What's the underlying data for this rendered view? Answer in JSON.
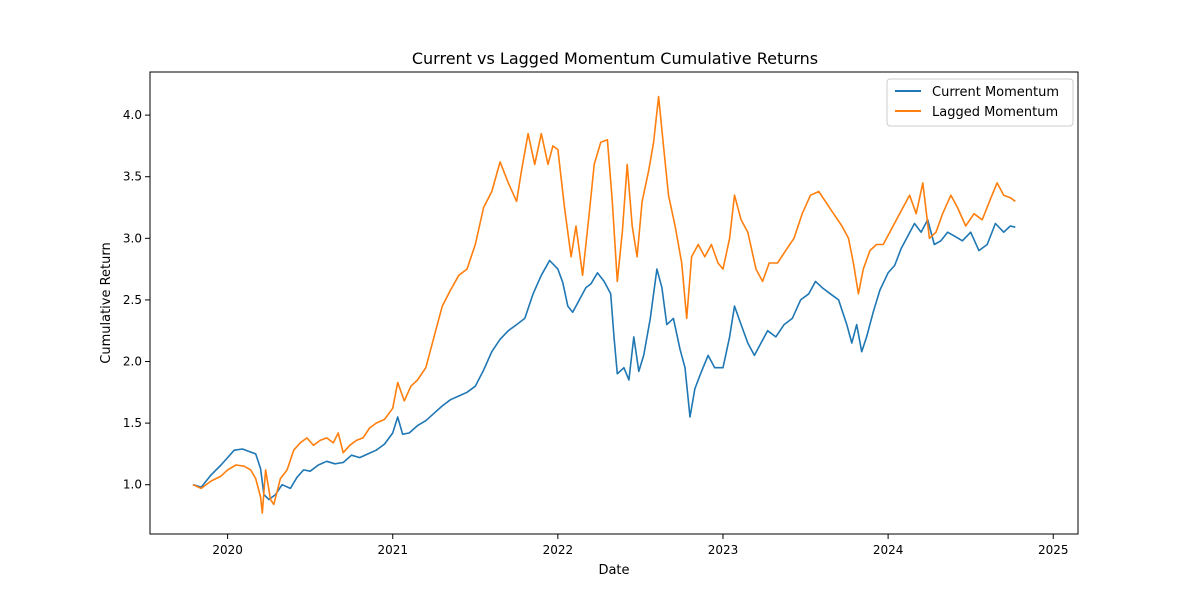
{
  "chart_data": {
    "type": "line",
    "title": "Current vs Lagged Momentum Cumulative Returns",
    "xlabel": "Date",
    "ylabel": "Cumulative Return",
    "xlim": [
      2019.53,
      2025.15
    ],
    "ylim": [
      0.6,
      4.35
    ],
    "x_ticks": [
      2020,
      2021,
      2022,
      2023,
      2024,
      2025
    ],
    "x_tick_labels": [
      "2020",
      "2021",
      "2022",
      "2023",
      "2024",
      "2025"
    ],
    "y_ticks": [
      1.0,
      1.5,
      2.0,
      2.5,
      3.0,
      3.5,
      4.0
    ],
    "y_tick_labels": [
      "1.0",
      "1.5",
      "2.0",
      "2.5",
      "3.0",
      "3.5",
      "4.0"
    ],
    "grid": false,
    "legend_position": "top-right",
    "series": [
      {
        "name": "Current Momentum",
        "color": "#1f77b4",
        "points": [
          [
            2019.79,
            1.0
          ],
          [
            2019.84,
            0.98
          ],
          [
            2019.9,
            1.08
          ],
          [
            2019.96,
            1.16
          ],
          [
            2020.0,
            1.22
          ],
          [
            2020.04,
            1.28
          ],
          [
            2020.09,
            1.29
          ],
          [
            2020.13,
            1.27
          ],
          [
            2020.17,
            1.25
          ],
          [
            2020.2,
            1.13
          ],
          [
            2020.22,
            0.92
          ],
          [
            2020.25,
            0.88
          ],
          [
            2020.29,
            0.92
          ],
          [
            2020.33,
            1.0
          ],
          [
            2020.38,
            0.97
          ],
          [
            2020.42,
            1.06
          ],
          [
            2020.46,
            1.12
          ],
          [
            2020.5,
            1.11
          ],
          [
            2020.55,
            1.16
          ],
          [
            2020.6,
            1.19
          ],
          [
            2020.65,
            1.17
          ],
          [
            2020.7,
            1.18
          ],
          [
            2020.75,
            1.24
          ],
          [
            2020.8,
            1.22
          ],
          [
            2020.85,
            1.25
          ],
          [
            2020.9,
            1.28
          ],
          [
            2020.95,
            1.33
          ],
          [
            2021.0,
            1.42
          ],
          [
            2021.03,
            1.55
          ],
          [
            2021.06,
            1.41
          ],
          [
            2021.1,
            1.42
          ],
          [
            2021.15,
            1.48
          ],
          [
            2021.2,
            1.52
          ],
          [
            2021.25,
            1.58
          ],
          [
            2021.3,
            1.64
          ],
          [
            2021.35,
            1.69
          ],
          [
            2021.4,
            1.72
          ],
          [
            2021.45,
            1.75
          ],
          [
            2021.5,
            1.8
          ],
          [
            2021.55,
            1.93
          ],
          [
            2021.6,
            2.08
          ],
          [
            2021.65,
            2.18
          ],
          [
            2021.7,
            2.25
          ],
          [
            2021.75,
            2.3
          ],
          [
            2021.8,
            2.35
          ],
          [
            2021.85,
            2.55
          ],
          [
            2021.9,
            2.7
          ],
          [
            2021.95,
            2.82
          ],
          [
            2022.0,
            2.75
          ],
          [
            2022.03,
            2.64
          ],
          [
            2022.06,
            2.45
          ],
          [
            2022.09,
            2.4
          ],
          [
            2022.13,
            2.5
          ],
          [
            2022.17,
            2.6
          ],
          [
            2022.2,
            2.63
          ],
          [
            2022.24,
            2.72
          ],
          [
            2022.28,
            2.65
          ],
          [
            2022.32,
            2.55
          ],
          [
            2022.34,
            2.2
          ],
          [
            2022.36,
            1.9
          ],
          [
            2022.4,
            1.95
          ],
          [
            2022.43,
            1.85
          ],
          [
            2022.46,
            2.2
          ],
          [
            2022.49,
            1.92
          ],
          [
            2022.52,
            2.05
          ],
          [
            2022.56,
            2.35
          ],
          [
            2022.6,
            2.75
          ],
          [
            2022.63,
            2.6
          ],
          [
            2022.66,
            2.3
          ],
          [
            2022.7,
            2.35
          ],
          [
            2022.74,
            2.1
          ],
          [
            2022.77,
            1.95
          ],
          [
            2022.8,
            1.55
          ],
          [
            2022.83,
            1.78
          ],
          [
            2022.87,
            1.92
          ],
          [
            2022.91,
            2.05
          ],
          [
            2022.95,
            1.95
          ],
          [
            2023.0,
            1.95
          ],
          [
            2023.04,
            2.2
          ],
          [
            2023.07,
            2.45
          ],
          [
            2023.11,
            2.3
          ],
          [
            2023.15,
            2.15
          ],
          [
            2023.19,
            2.05
          ],
          [
            2023.23,
            2.15
          ],
          [
            2023.27,
            2.25
          ],
          [
            2023.32,
            2.2
          ],
          [
            2023.37,
            2.3
          ],
          [
            2023.42,
            2.35
          ],
          [
            2023.47,
            2.5
          ],
          [
            2023.52,
            2.55
          ],
          [
            2023.56,
            2.65
          ],
          [
            2023.6,
            2.6
          ],
          [
            2023.65,
            2.55
          ],
          [
            2023.7,
            2.5
          ],
          [
            2023.75,
            2.3
          ],
          [
            2023.78,
            2.15
          ],
          [
            2023.81,
            2.3
          ],
          [
            2023.84,
            2.08
          ],
          [
            2023.87,
            2.2
          ],
          [
            2023.91,
            2.4
          ],
          [
            2023.95,
            2.58
          ],
          [
            2024.0,
            2.72
          ],
          [
            2024.04,
            2.78
          ],
          [
            2024.08,
            2.92
          ],
          [
            2024.12,
            3.02
          ],
          [
            2024.16,
            3.12
          ],
          [
            2024.2,
            3.05
          ],
          [
            2024.24,
            3.15
          ],
          [
            2024.28,
            2.95
          ],
          [
            2024.32,
            2.98
          ],
          [
            2024.36,
            3.05
          ],
          [
            2024.4,
            3.02
          ],
          [
            2024.45,
            2.98
          ],
          [
            2024.5,
            3.05
          ],
          [
            2024.55,
            2.9
          ],
          [
            2024.6,
            2.95
          ],
          [
            2024.65,
            3.12
          ],
          [
            2024.7,
            3.05
          ],
          [
            2024.74,
            3.1
          ],
          [
            2024.77,
            3.09
          ]
        ]
      },
      {
        "name": "Lagged Momentum",
        "color": "#ff7f0e",
        "points": [
          [
            2019.79,
            1.0
          ],
          [
            2019.84,
            0.97
          ],
          [
            2019.9,
            1.03
          ],
          [
            2019.96,
            1.07
          ],
          [
            2020.0,
            1.12
          ],
          [
            2020.05,
            1.16
          ],
          [
            2020.1,
            1.15
          ],
          [
            2020.14,
            1.12
          ],
          [
            2020.17,
            1.05
          ],
          [
            2020.2,
            0.9
          ],
          [
            2020.21,
            0.77
          ],
          [
            2020.23,
            1.12
          ],
          [
            2020.26,
            0.88
          ],
          [
            2020.28,
            0.84
          ],
          [
            2020.32,
            1.05
          ],
          [
            2020.36,
            1.12
          ],
          [
            2020.4,
            1.28
          ],
          [
            2020.44,
            1.34
          ],
          [
            2020.48,
            1.38
          ],
          [
            2020.52,
            1.32
          ],
          [
            2020.56,
            1.36
          ],
          [
            2020.6,
            1.38
          ],
          [
            2020.64,
            1.34
          ],
          [
            2020.67,
            1.42
          ],
          [
            2020.7,
            1.26
          ],
          [
            2020.74,
            1.32
          ],
          [
            2020.78,
            1.36
          ],
          [
            2020.82,
            1.38
          ],
          [
            2020.86,
            1.46
          ],
          [
            2020.9,
            1.5
          ],
          [
            2020.95,
            1.53
          ],
          [
            2021.0,
            1.62
          ],
          [
            2021.03,
            1.83
          ],
          [
            2021.07,
            1.68
          ],
          [
            2021.11,
            1.8
          ],
          [
            2021.15,
            1.85
          ],
          [
            2021.2,
            1.95
          ],
          [
            2021.25,
            2.2
          ],
          [
            2021.3,
            2.45
          ],
          [
            2021.35,
            2.58
          ],
          [
            2021.4,
            2.7
          ],
          [
            2021.45,
            2.75
          ],
          [
            2021.5,
            2.95
          ],
          [
            2021.55,
            3.25
          ],
          [
            2021.6,
            3.38
          ],
          [
            2021.65,
            3.62
          ],
          [
            2021.7,
            3.45
          ],
          [
            2021.75,
            3.3
          ],
          [
            2021.78,
            3.55
          ],
          [
            2021.82,
            3.85
          ],
          [
            2021.86,
            3.6
          ],
          [
            2021.9,
            3.85
          ],
          [
            2021.94,
            3.6
          ],
          [
            2021.97,
            3.75
          ],
          [
            2022.0,
            3.72
          ],
          [
            2022.04,
            3.25
          ],
          [
            2022.08,
            2.85
          ],
          [
            2022.11,
            3.1
          ],
          [
            2022.15,
            2.7
          ],
          [
            2022.19,
            3.2
          ],
          [
            2022.22,
            3.6
          ],
          [
            2022.26,
            3.78
          ],
          [
            2022.3,
            3.8
          ],
          [
            2022.33,
            3.3
          ],
          [
            2022.36,
            2.65
          ],
          [
            2022.39,
            3.05
          ],
          [
            2022.42,
            3.6
          ],
          [
            2022.45,
            3.1
          ],
          [
            2022.48,
            2.85
          ],
          [
            2022.51,
            3.3
          ],
          [
            2022.55,
            3.55
          ],
          [
            2022.58,
            3.78
          ],
          [
            2022.61,
            4.15
          ],
          [
            2022.64,
            3.75
          ],
          [
            2022.67,
            3.35
          ],
          [
            2022.71,
            3.1
          ],
          [
            2022.75,
            2.8
          ],
          [
            2022.78,
            2.35
          ],
          [
            2022.81,
            2.85
          ],
          [
            2022.85,
            2.95
          ],
          [
            2022.89,
            2.85
          ],
          [
            2022.93,
            2.95
          ],
          [
            2022.97,
            2.8
          ],
          [
            2023.0,
            2.75
          ],
          [
            2023.04,
            3.0
          ],
          [
            2023.07,
            3.35
          ],
          [
            2023.11,
            3.15
          ],
          [
            2023.15,
            3.05
          ],
          [
            2023.2,
            2.75
          ],
          [
            2023.24,
            2.65
          ],
          [
            2023.28,
            2.8
          ],
          [
            2023.33,
            2.8
          ],
          [
            2023.38,
            2.9
          ],
          [
            2023.43,
            3.0
          ],
          [
            2023.48,
            3.2
          ],
          [
            2023.53,
            3.35
          ],
          [
            2023.58,
            3.38
          ],
          [
            2023.62,
            3.3
          ],
          [
            2023.67,
            3.2
          ],
          [
            2023.72,
            3.1
          ],
          [
            2023.76,
            3.0
          ],
          [
            2023.79,
            2.8
          ],
          [
            2023.82,
            2.55
          ],
          [
            2023.85,
            2.75
          ],
          [
            2023.89,
            2.9
          ],
          [
            2023.93,
            2.95
          ],
          [
            2023.97,
            2.95
          ],
          [
            2024.01,
            3.05
          ],
          [
            2024.05,
            3.15
          ],
          [
            2024.09,
            3.25
          ],
          [
            2024.13,
            3.35
          ],
          [
            2024.17,
            3.2
          ],
          [
            2024.21,
            3.45
          ],
          [
            2024.25,
            3.0
          ],
          [
            2024.29,
            3.05
          ],
          [
            2024.33,
            3.2
          ],
          [
            2024.38,
            3.35
          ],
          [
            2024.42,
            3.25
          ],
          [
            2024.47,
            3.1
          ],
          [
            2024.52,
            3.2
          ],
          [
            2024.57,
            3.15
          ],
          [
            2024.62,
            3.32
          ],
          [
            2024.66,
            3.45
          ],
          [
            2024.7,
            3.35
          ],
          [
            2024.74,
            3.33
          ],
          [
            2024.77,
            3.3
          ]
        ]
      }
    ]
  }
}
